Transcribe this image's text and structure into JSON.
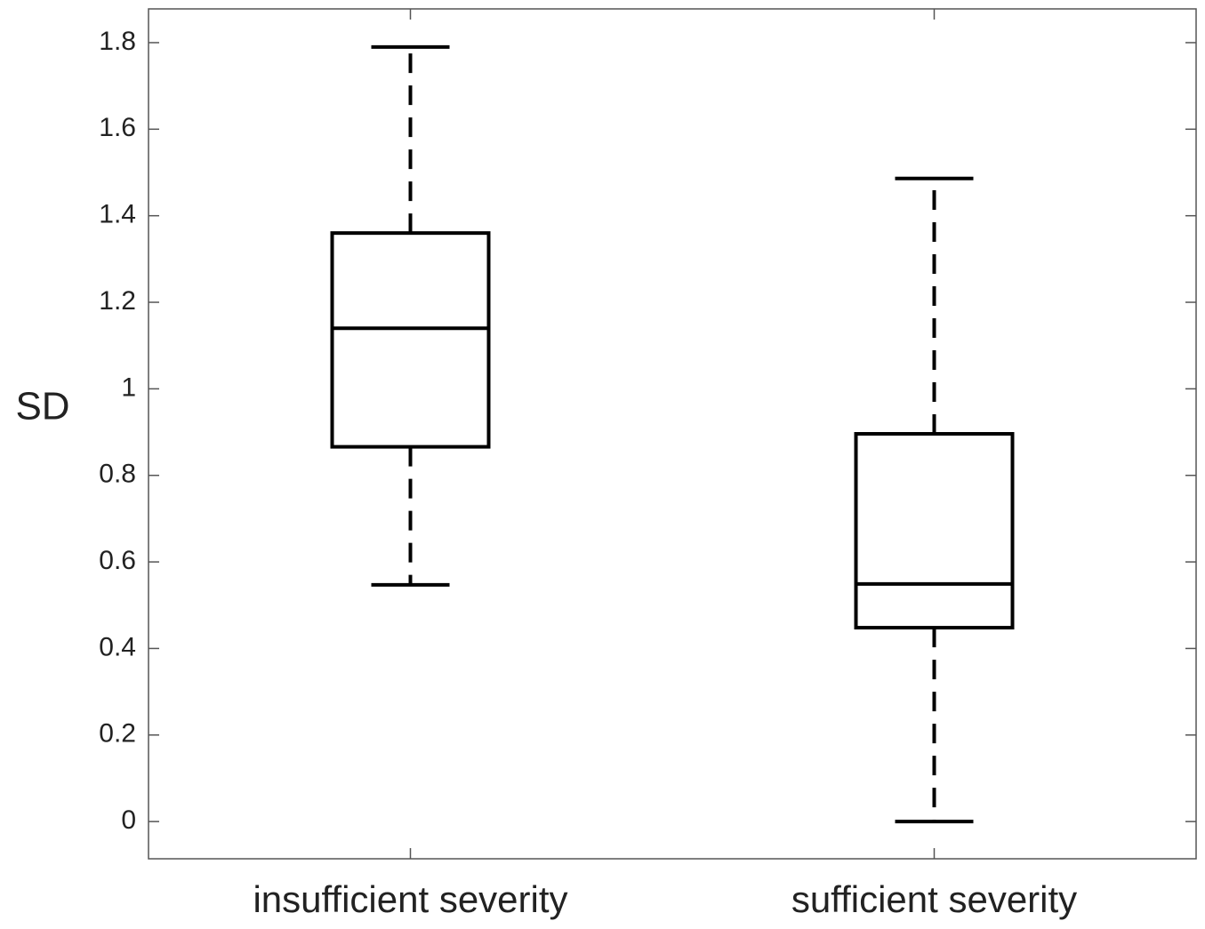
{
  "chart_data": {
    "type": "box",
    "ylabel": "SD",
    "categories": [
      "insufficient severity",
      "sufficient severity"
    ],
    "stats": [
      {
        "min": 0.547,
        "q1": 0.866,
        "median": 1.14,
        "q3": 1.36,
        "max": 1.79
      },
      {
        "min": 0,
        "q1": 0.448,
        "median": 0.549,
        "q3": 0.896,
        "max": 1.486
      }
    ],
    "color": "#000000",
    "ylim": [
      -0.086,
      1.878
    ],
    "yticks": [
      0,
      0.2,
      0.4,
      0.6,
      0.8,
      1,
      1.2,
      1.4,
      1.6,
      1.8
    ]
  }
}
